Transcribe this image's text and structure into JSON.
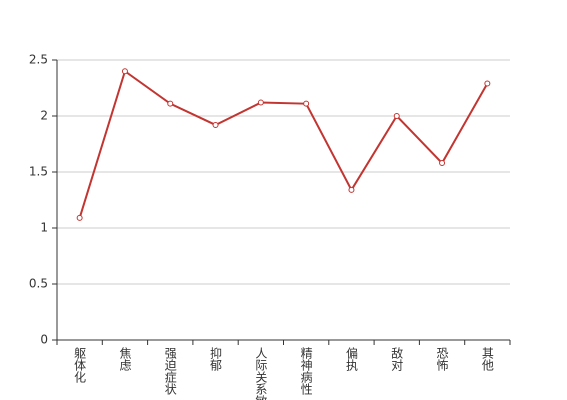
{
  "chart_data": {
    "type": "line",
    "categories": [
      "躯体化",
      "焦虑",
      "强迫症状",
      "抑郁",
      "人际关系敏感",
      "精神病性",
      "偏执",
      "敌对",
      "恐怖",
      "其他"
    ],
    "values": [
      1.09,
      2.4,
      2.11,
      1.92,
      2.12,
      2.11,
      1.34,
      2.0,
      1.58,
      2.29
    ],
    "color": "#c23531",
    "ylim": [
      0,
      2.5
    ],
    "yticks": [
      0,
      0.5,
      1,
      1.5,
      2,
      2.5
    ],
    "grid": true
  }
}
